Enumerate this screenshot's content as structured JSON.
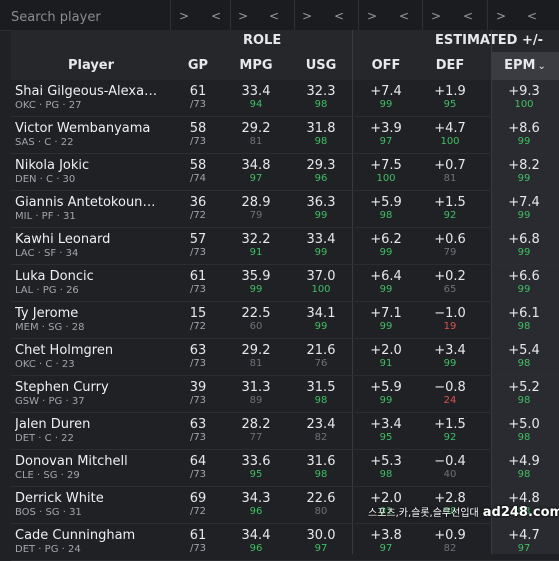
{
  "search": {
    "placeholder": "Search player"
  },
  "sort_controls": [
    {
      "asc": ">",
      "desc": "<"
    },
    {
      "asc": ">",
      "desc": "<"
    },
    {
      "asc": ">",
      "desc": "<"
    },
    {
      "asc": ">",
      "desc": "<"
    },
    {
      "asc": ">",
      "desc": "<"
    },
    {
      "asc": ">",
      "desc": "<"
    },
    {
      "asc": ">",
      "desc": "<"
    }
  ],
  "header": {
    "role_label": "ROLE",
    "estimated_label": "ESTIMATED +/-",
    "columns": {
      "player": "Player",
      "gp": "GP",
      "mpg": "MPG",
      "usg": "USG",
      "off": "OFF",
      "def": "DEF",
      "epm": "EPM"
    },
    "sorted_column": "EPM",
    "sort_icon": "chevron-down-icon"
  },
  "colors": {
    "background": "#202125",
    "percentile_high": "#3fbf63",
    "percentile_low": "#d9534f",
    "percentile_mid": "#6f7177"
  },
  "players": [
    {
      "name": "Shai Gilgeous-Alexander",
      "meta": "OKC · PG · 27",
      "gp": "61",
      "gp_total": "/73",
      "mpg": "33.4",
      "mpg_pct": "94",
      "usg": "32.3",
      "usg_pct": "98",
      "off": "+7.4",
      "off_pct": "99",
      "def": "+1.9",
      "def_pct": "95",
      "epm": "+9.3",
      "epm_pct": "100"
    },
    {
      "name": "Victor Wembanyama",
      "meta": "SAS · C · 22",
      "gp": "58",
      "gp_total": "/73",
      "mpg": "29.2",
      "mpg_pct": "81",
      "usg": "31.8",
      "usg_pct": "98",
      "off": "+3.9",
      "off_pct": "97",
      "def": "+4.7",
      "def_pct": "100",
      "epm": "+8.6",
      "epm_pct": "99"
    },
    {
      "name": "Nikola Jokic",
      "meta": "DEN · C · 30",
      "gp": "58",
      "gp_total": "/74",
      "mpg": "34.8",
      "mpg_pct": "97",
      "usg": "29.3",
      "usg_pct": "96",
      "off": "+7.5",
      "off_pct": "100",
      "def": "+0.7",
      "def_pct": "81",
      "epm": "+8.2",
      "epm_pct": "99"
    },
    {
      "name": "Giannis Antetokounmpo",
      "meta": "MIL · PF · 31",
      "gp": "36",
      "gp_total": "/72",
      "mpg": "28.9",
      "mpg_pct": "79",
      "usg": "36.3",
      "usg_pct": "99",
      "off": "+5.9",
      "off_pct": "98",
      "def": "+1.5",
      "def_pct": "92",
      "epm": "+7.4",
      "epm_pct": "99"
    },
    {
      "name": "Kawhi Leonard",
      "meta": "LAC · SF · 34",
      "gp": "57",
      "gp_total": "/73",
      "mpg": "32.2",
      "mpg_pct": "91",
      "usg": "33.4",
      "usg_pct": "99",
      "off": "+6.2",
      "off_pct": "99",
      "def": "+0.6",
      "def_pct": "79",
      "epm": "+6.8",
      "epm_pct": "99"
    },
    {
      "name": "Luka Doncic",
      "meta": "LAL · PG · 26",
      "gp": "61",
      "gp_total": "/73",
      "mpg": "35.9",
      "mpg_pct": "99",
      "usg": "37.0",
      "usg_pct": "100",
      "off": "+6.4",
      "off_pct": "99",
      "def": "+0.2",
      "def_pct": "65",
      "epm": "+6.6",
      "epm_pct": "99"
    },
    {
      "name": "Ty Jerome",
      "meta": "MEM · SG · 28",
      "gp": "15",
      "gp_total": "/72",
      "mpg": "22.5",
      "mpg_pct": "60",
      "usg": "34.1",
      "usg_pct": "99",
      "off": "+7.1",
      "off_pct": "99",
      "def": "−1.0",
      "def_pct": "19",
      "epm": "+6.1",
      "epm_pct": "98"
    },
    {
      "name": "Chet Holmgren",
      "meta": "OKC · C · 23",
      "gp": "63",
      "gp_total": "/73",
      "mpg": "29.2",
      "mpg_pct": "81",
      "usg": "21.6",
      "usg_pct": "76",
      "off": "+2.0",
      "off_pct": "91",
      "def": "+3.4",
      "def_pct": "99",
      "epm": "+5.4",
      "epm_pct": "98"
    },
    {
      "name": "Stephen Curry",
      "meta": "GSW · PG · 37",
      "gp": "39",
      "gp_total": "/73",
      "mpg": "31.3",
      "mpg_pct": "89",
      "usg": "31.5",
      "usg_pct": "98",
      "off": "+5.9",
      "off_pct": "99",
      "def": "−0.8",
      "def_pct": "24",
      "epm": "+5.2",
      "epm_pct": "98"
    },
    {
      "name": "Jalen Duren",
      "meta": "DET · C · 22",
      "gp": "63",
      "gp_total": "/73",
      "mpg": "28.2",
      "mpg_pct": "77",
      "usg": "23.4",
      "usg_pct": "82",
      "off": "+3.4",
      "off_pct": "95",
      "def": "+1.5",
      "def_pct": "92",
      "epm": "+5.0",
      "epm_pct": "98"
    },
    {
      "name": "Donovan Mitchell",
      "meta": "CLE · SG · 29",
      "gp": "64",
      "gp_total": "/73",
      "mpg": "33.6",
      "mpg_pct": "95",
      "usg": "31.6",
      "usg_pct": "98",
      "off": "+5.3",
      "off_pct": "98",
      "def": "−0.4",
      "def_pct": "40",
      "epm": "+4.9",
      "epm_pct": "98"
    },
    {
      "name": "Derrick White",
      "meta": "BOS · SG · 31",
      "gp": "69",
      "gp_total": "/72",
      "mpg": "34.3",
      "mpg_pct": "96",
      "usg": "22.6",
      "usg_pct": "80",
      "off": "+2.0",
      "off_pct": "91",
      "def": "+2.8",
      "def_pct": "98",
      "epm": "+4.8",
      "epm_pct": "98"
    },
    {
      "name": "Cade Cunningham",
      "meta": "DET · PG · 24",
      "gp": "61",
      "gp_total": "/73",
      "mpg": "34.4",
      "mpg_pct": "96",
      "usg": "30.0",
      "usg_pct": "97",
      "off": "+3.8",
      "off_pct": "97",
      "def": "+0.9",
      "def_pct": "82",
      "epm": "+4.7",
      "epm_pct": "97"
    }
  ],
  "watermark": {
    "small_text": "스포츠,카,슬롯,슬루선입대",
    "domain": "ad248.com"
  }
}
